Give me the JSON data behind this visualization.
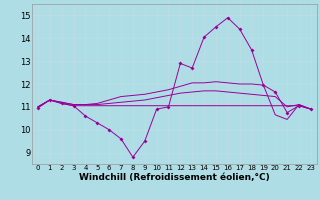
{
  "background_color": "#aedde6",
  "line_color": "#990099",
  "x_hours": [
    0,
    1,
    2,
    3,
    4,
    5,
    6,
    7,
    8,
    9,
    10,
    11,
    12,
    13,
    14,
    15,
    16,
    17,
    18,
    19,
    20,
    21,
    22,
    23
  ],
  "series1": [
    10.95,
    11.3,
    11.15,
    11.05,
    10.6,
    10.3,
    10.0,
    9.6,
    8.8,
    9.5,
    10.9,
    11.0,
    12.9,
    12.7,
    14.05,
    14.5,
    14.9,
    14.4,
    13.5,
    11.95,
    11.65,
    10.75,
    11.05,
    10.9
  ],
  "series2_x": [
    0,
    1,
    2,
    3,
    4,
    5,
    6,
    7,
    8,
    9,
    10,
    11,
    12,
    13,
    14,
    15,
    16,
    17,
    18,
    19,
    20,
    21,
    22,
    23
  ],
  "series2": [
    11.0,
    11.3,
    11.15,
    11.05,
    11.05,
    11.05,
    11.05,
    11.05,
    11.05,
    11.05,
    11.05,
    11.05,
    11.05,
    11.05,
    11.05,
    11.05,
    11.05,
    11.05,
    11.05,
    11.05,
    11.05,
    11.05,
    11.05,
    10.9
  ],
  "series3_x": [
    0,
    1,
    2,
    3,
    4,
    5,
    6,
    7,
    8,
    9,
    10,
    11,
    12,
    13,
    14,
    15,
    16,
    17,
    18,
    19,
    20,
    21,
    22,
    23
  ],
  "series3": [
    11.0,
    11.3,
    11.2,
    11.1,
    11.1,
    11.1,
    11.15,
    11.2,
    11.25,
    11.3,
    11.4,
    11.5,
    11.6,
    11.65,
    11.7,
    11.7,
    11.65,
    11.6,
    11.55,
    11.5,
    11.45,
    11.0,
    11.1,
    10.9
  ],
  "series4_x": [
    0,
    1,
    2,
    3,
    4,
    5,
    6,
    7,
    8,
    9,
    10,
    11,
    12,
    13,
    14,
    15,
    16,
    17,
    18,
    19,
    20,
    21,
    22,
    23
  ],
  "series4": [
    11.0,
    11.3,
    11.2,
    11.1,
    11.1,
    11.15,
    11.3,
    11.45,
    11.5,
    11.55,
    11.65,
    11.75,
    11.9,
    12.05,
    12.05,
    12.1,
    12.05,
    12.0,
    12.0,
    11.95,
    10.65,
    10.45,
    11.1,
    10.9
  ],
  "ylim": [
    8.5,
    15.5
  ],
  "yticks": [
    9,
    10,
    11,
    12,
    13,
    14,
    15
  ],
  "xlim": [
    -0.5,
    23.5
  ],
  "xtick_fontsize": 5.0,
  "ytick_fontsize": 6.0,
  "xlabel": "Windchill (Refroidissement éolien,°C)",
  "xlabel_fontsize": 6.5
}
